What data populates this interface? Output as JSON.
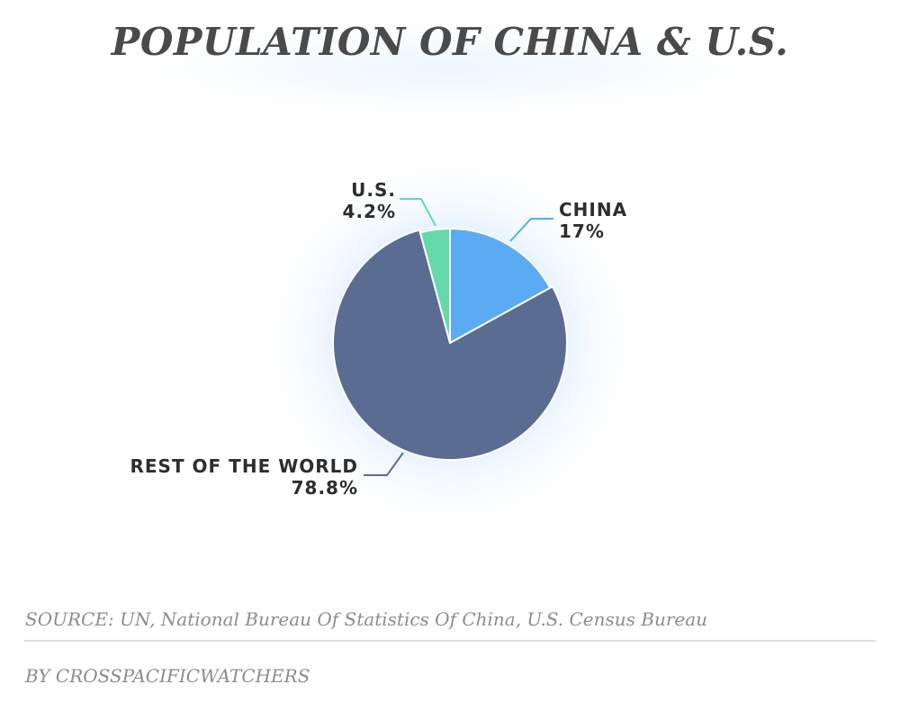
{
  "title": "POPULATION OF CHINA & U.S.",
  "source": "SOURCE: UN, National Bureau Of Statistics Of China, U.S. Census Bureau",
  "byline": "BY CROSSPACIFICWATCHERS",
  "chart_data": {
    "type": "pie",
    "title": "POPULATION OF CHINA & U.S.",
    "slices": [
      {
        "label": "CHINA",
        "value": 17,
        "value_label": "17%",
        "color": "#5aabf2"
      },
      {
        "label": "REST OF THE WORLD",
        "value": 78.8,
        "value_label": "78.8%",
        "color": "#5b6c92"
      },
      {
        "label": "U.S.",
        "value": 4.2,
        "value_label": "4.2%",
        "color": "#66d9ac"
      }
    ],
    "start_angle": "12 o'clock",
    "direction": "clockwise",
    "highlighted_slices": [
      "CHINA",
      "U.S."
    ],
    "legend": "none",
    "label_style": "callout lines"
  }
}
